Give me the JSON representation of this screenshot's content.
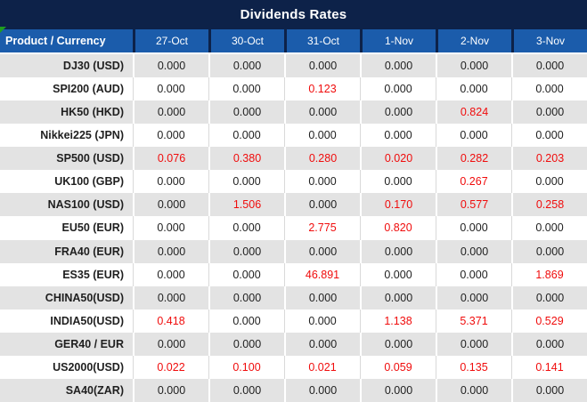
{
  "title": "Dividends Rates",
  "colors": {
    "title_bar_navy": "#0d2249",
    "header_blue": "#1b5cab",
    "row_alternate_gray": "#e3e3e3",
    "dividend_highlight_red": "#f00c0c",
    "corner_marker_green": "#1f9d1f"
  },
  "table": {
    "header": {
      "product_label": "Product / Currency",
      "dates": [
        "27-Oct",
        "30-Oct",
        "31-Oct",
        "1-Nov",
        "2-Nov",
        "3-Nov"
      ]
    },
    "rows": [
      {
        "label": "DJ30 (USD)",
        "values": [
          "0.000",
          "0.000",
          "0.000",
          "0.000",
          "0.000",
          "0.000"
        ],
        "red": [
          false,
          false,
          false,
          false,
          false,
          false
        ]
      },
      {
        "label": "SPI200 (AUD)",
        "values": [
          "0.000",
          "0.000",
          "0.123",
          "0.000",
          "0.000",
          "0.000"
        ],
        "red": [
          false,
          false,
          true,
          false,
          false,
          false
        ]
      },
      {
        "label": "HK50 (HKD)",
        "values": [
          "0.000",
          "0.000",
          "0.000",
          "0.000",
          "0.824",
          "0.000"
        ],
        "red": [
          false,
          false,
          false,
          false,
          true,
          false
        ]
      },
      {
        "label": "Nikkei225 (JPN)",
        "values": [
          "0.000",
          "0.000",
          "0.000",
          "0.000",
          "0.000",
          "0.000"
        ],
        "red": [
          false,
          false,
          false,
          false,
          false,
          false
        ]
      },
      {
        "label": "SP500 (USD)",
        "values": [
          "0.076",
          "0.380",
          "0.280",
          "0.020",
          "0.282",
          "0.203"
        ],
        "red": [
          true,
          true,
          true,
          true,
          true,
          true
        ]
      },
      {
        "label": "UK100 (GBP)",
        "values": [
          "0.000",
          "0.000",
          "0.000",
          "0.000",
          "0.267",
          "0.000"
        ],
        "red": [
          false,
          false,
          false,
          false,
          true,
          false
        ]
      },
      {
        "label": "NAS100 (USD)",
        "values": [
          "0.000",
          "1.506",
          "0.000",
          "0.170",
          "0.577",
          "0.258"
        ],
        "red": [
          false,
          true,
          false,
          true,
          true,
          true
        ]
      },
      {
        "label": "EU50 (EUR)",
        "values": [
          "0.000",
          "0.000",
          "2.775",
          "0.820",
          "0.000",
          "0.000"
        ],
        "red": [
          false,
          false,
          true,
          true,
          false,
          false
        ]
      },
      {
        "label": "FRA40 (EUR)",
        "values": [
          "0.000",
          "0.000",
          "0.000",
          "0.000",
          "0.000",
          "0.000"
        ],
        "red": [
          false,
          false,
          false,
          false,
          false,
          false
        ]
      },
      {
        "label": "ES35 (EUR)",
        "values": [
          "0.000",
          "0.000",
          "46.891",
          "0.000",
          "0.000",
          "1.869"
        ],
        "red": [
          false,
          false,
          true,
          false,
          false,
          true
        ]
      },
      {
        "label": "CHINA50(USD)",
        "values": [
          "0.000",
          "0.000",
          "0.000",
          "0.000",
          "0.000",
          "0.000"
        ],
        "red": [
          false,
          false,
          false,
          false,
          false,
          false
        ]
      },
      {
        "label": "INDIA50(USD)",
        "values": [
          "0.418",
          "0.000",
          "0.000",
          "1.138",
          "5.371",
          "0.529"
        ],
        "red": [
          true,
          false,
          false,
          true,
          true,
          true
        ]
      },
      {
        "label": "GER40 / EUR",
        "values": [
          "0.000",
          "0.000",
          "0.000",
          "0.000",
          "0.000",
          "0.000"
        ],
        "red": [
          false,
          false,
          false,
          false,
          false,
          false
        ]
      },
      {
        "label": "US2000(USD)",
        "values": [
          "0.022",
          "0.100",
          "0.021",
          "0.059",
          "0.135",
          "0.141"
        ],
        "red": [
          true,
          true,
          true,
          true,
          true,
          true
        ]
      },
      {
        "label": "SA40(ZAR)",
        "values": [
          "0.000",
          "0.000",
          "0.000",
          "0.000",
          "0.000",
          "0.000"
        ],
        "red": [
          false,
          false,
          false,
          false,
          false,
          false
        ]
      }
    ]
  }
}
